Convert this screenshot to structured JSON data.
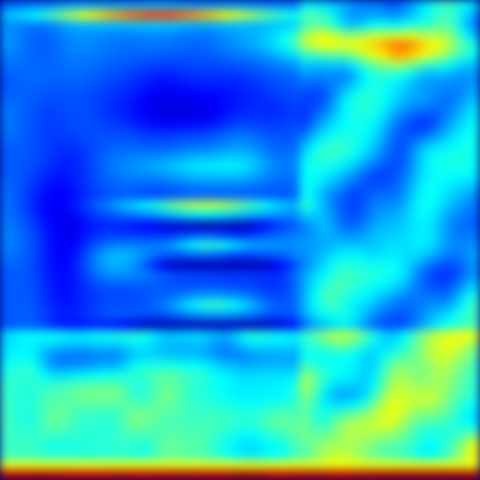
{
  "image": {
    "colormap": "jet",
    "palette": [
      "#00007f",
      "#0000ff",
      "#007fff",
      "#00ffff",
      "#7fff7f",
      "#ffff00",
      "#ff7f00",
      "#ff0000",
      "#7f0000"
    ],
    "grid_resolution": 48
  }
}
